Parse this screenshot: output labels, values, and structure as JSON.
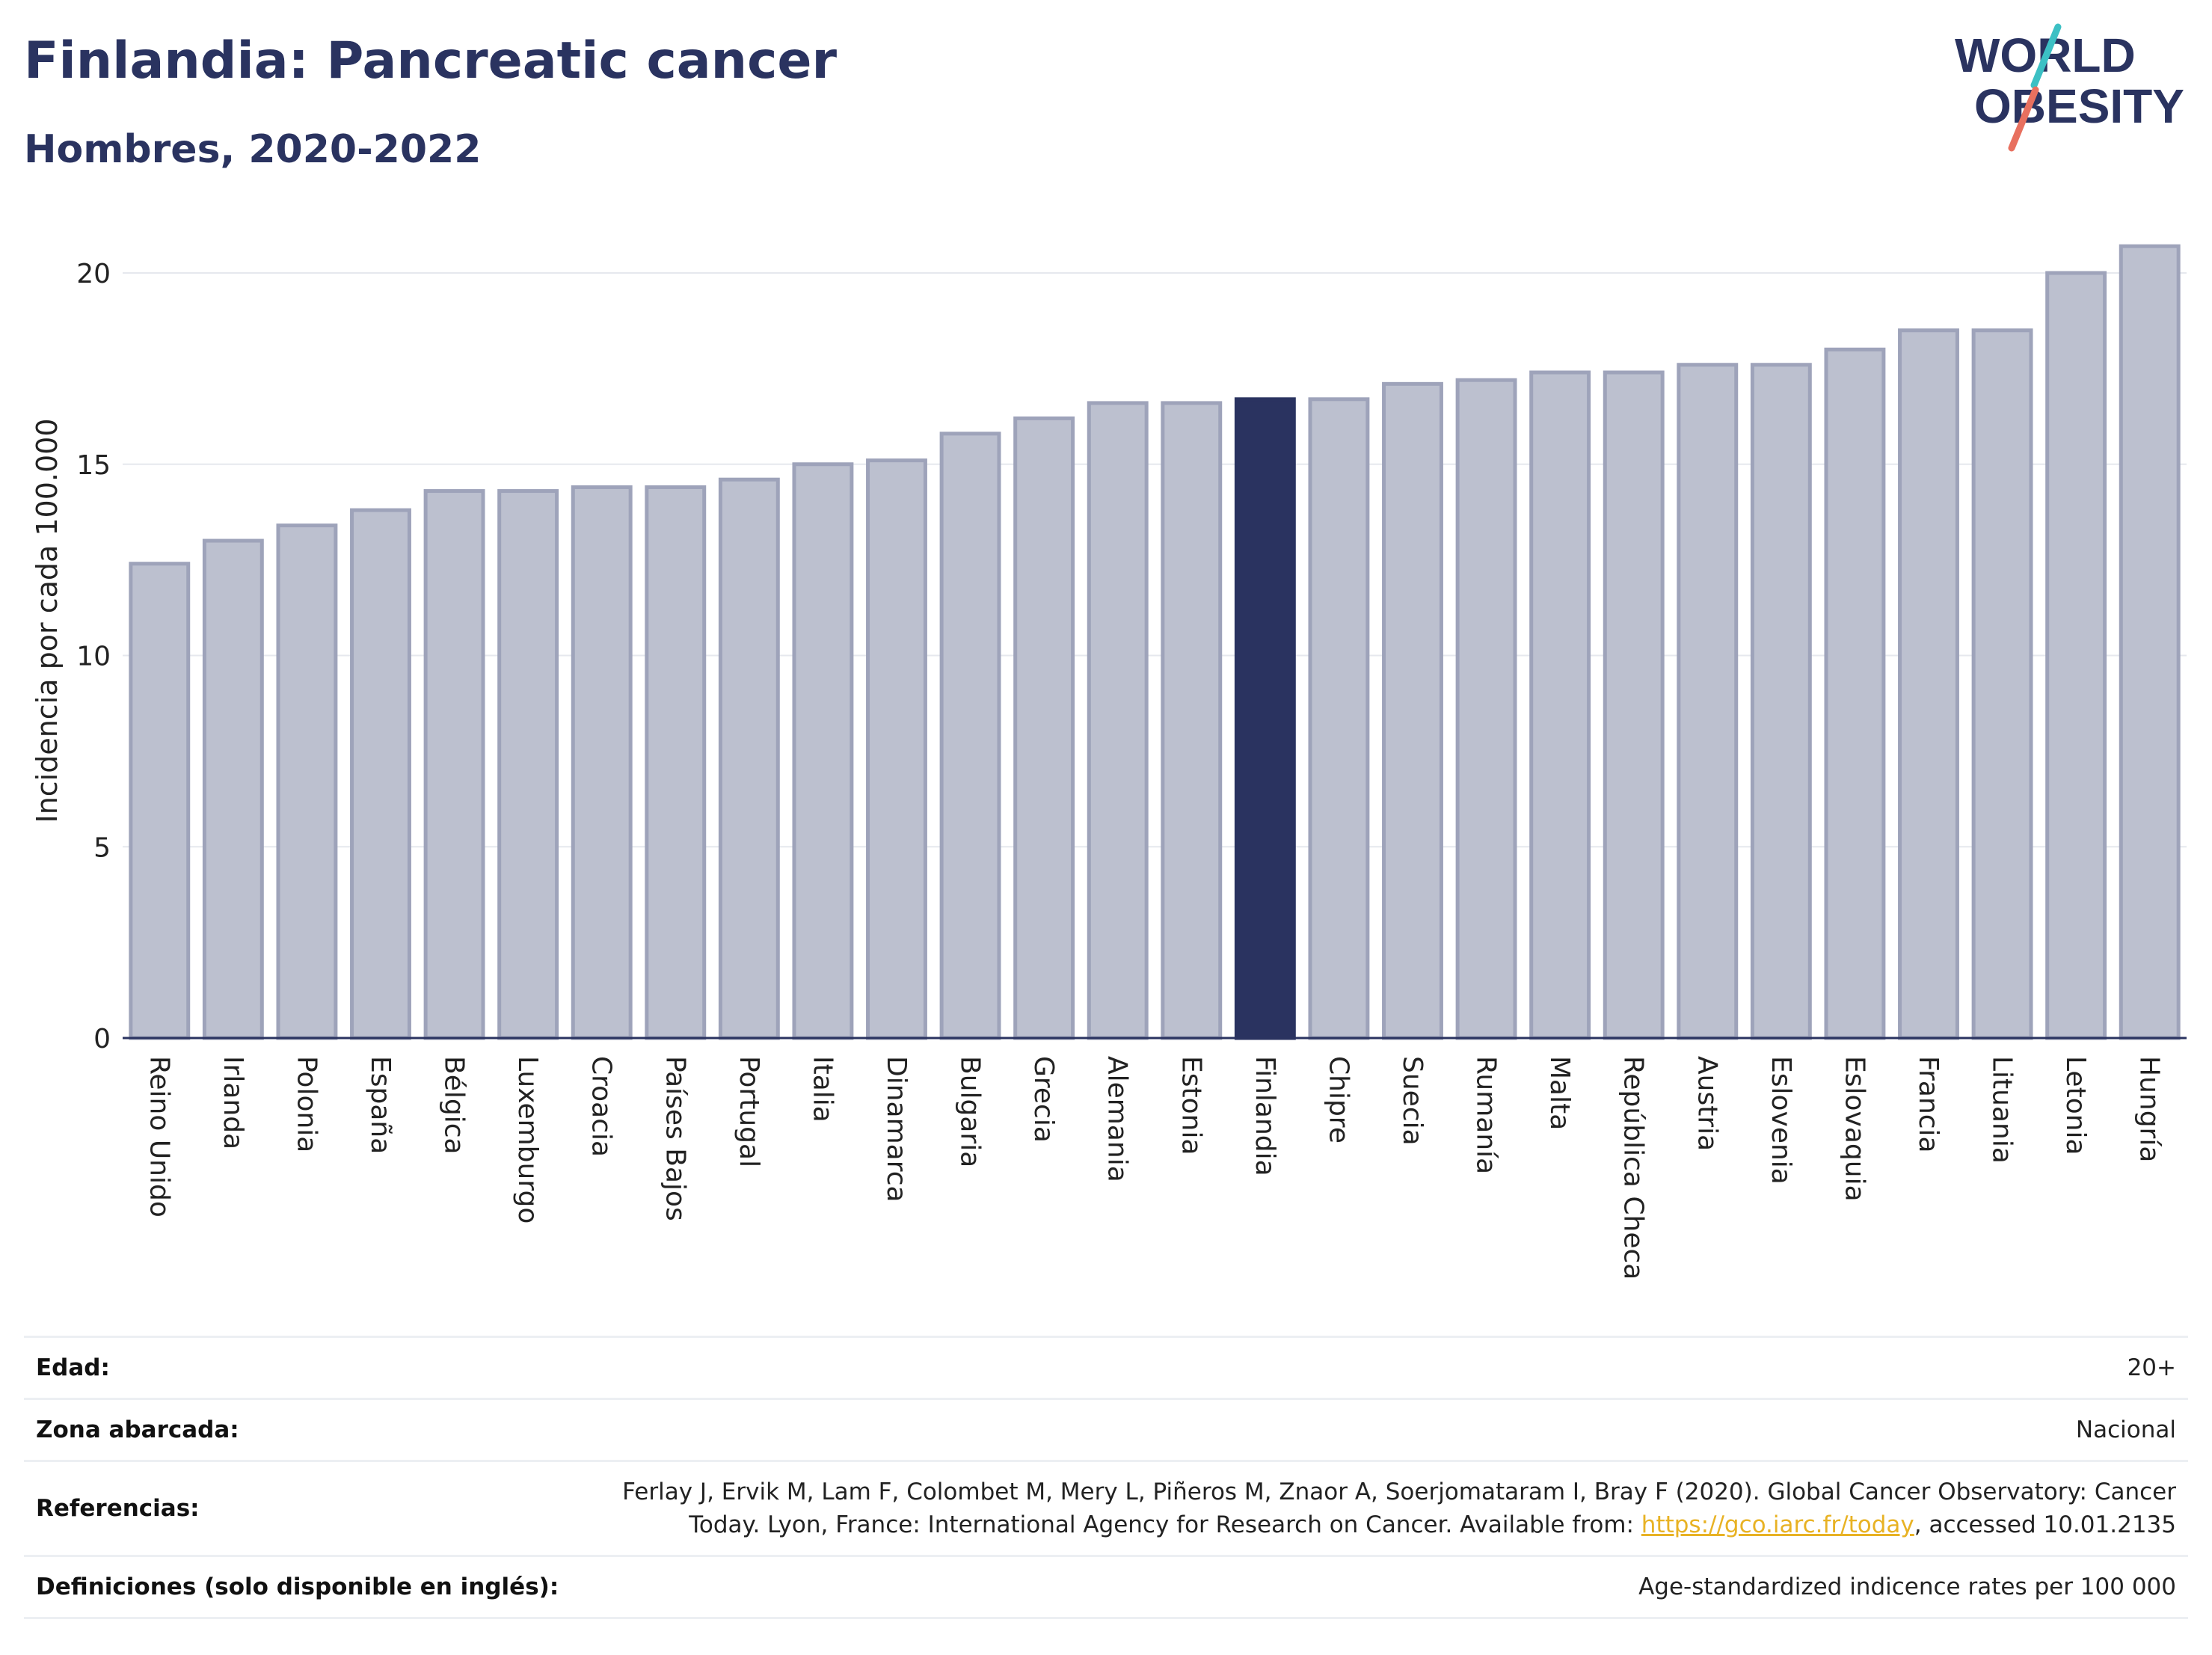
{
  "header": {
    "title": "Finlandia: Pancreatic cancer",
    "subtitle": "Hombres, 2020-2022"
  },
  "logo": {
    "line1": "WORLD",
    "line2": "OBESITY"
  },
  "colors": {
    "highlight": "#2a3360",
    "bar_fill": "#bcc0cf",
    "bar_stroke": "#9ea3ba",
    "grid": "#e6e8ee",
    "logo_teal": "#3cc0c4",
    "logo_coral": "#e8705f"
  },
  "chart_data": {
    "type": "bar",
    "title": "Finlandia: Pancreatic cancer",
    "subtitle": "Hombres, 2020-2022",
    "ylabel": "Incidencia por cada 100.000",
    "xlabel": "",
    "ylim": [
      0,
      21.5
    ],
    "yticks": [
      0,
      5,
      10,
      15,
      20
    ],
    "grid": true,
    "highlight_category": "Finlandia",
    "categories": [
      "Reino Unido",
      "Irlanda",
      "Polonia",
      "España",
      "Bélgica",
      "Luxemburgo",
      "Croacia",
      "Países Bajos",
      "Portugal",
      "Italia",
      "Dinamarca",
      "Bulgaria",
      "Grecia",
      "Alemania",
      "Estonia",
      "Finlandia",
      "Chipre",
      "Suecia",
      "Rumanía",
      "Malta",
      "República Checa",
      "Austria",
      "Eslovenia",
      "Eslovaquia",
      "Francia",
      "Lituania",
      "Letonia",
      "Hungría"
    ],
    "values": [
      12.4,
      13.0,
      13.4,
      13.8,
      14.3,
      14.3,
      14.4,
      14.4,
      14.6,
      15.0,
      15.1,
      15.8,
      16.2,
      16.6,
      16.6,
      16.7,
      16.7,
      17.1,
      17.2,
      17.4,
      17.4,
      17.6,
      17.6,
      18.0,
      18.5,
      18.5,
      20.0,
      20.7
    ]
  },
  "info": {
    "age_label": "Edad:",
    "age_value": "20+",
    "zone_label": "Zona abarcada:",
    "zone_value": "Nacional",
    "refs_label": "Referencias:",
    "refs_line1": "Ferlay J, Ervik M, Lam F, Colombet M, Mery L, Piñeros M, Znaor A, Soerjomataram I, Bray F (2020). Global Cancer Observatory: Cancer",
    "refs_line2_pre": "Today. Lyon, France: International Agency for Research on Cancer. Available from: ",
    "refs_link": "https://gco.iarc.fr/today",
    "refs_line2_post": ", accessed 10.01.2135",
    "defs_label": "Definiciones (solo disponible en inglés):",
    "defs_value": "Age-standardized indicence rates per 100 000"
  }
}
